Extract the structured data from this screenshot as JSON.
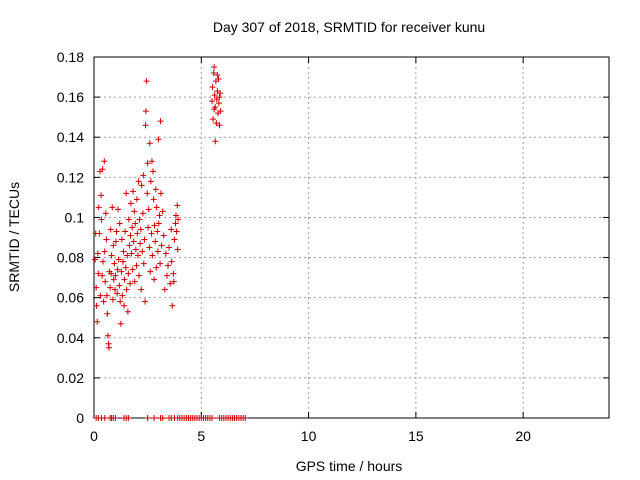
{
  "chart_data": {
    "type": "scatter",
    "title": "Day 307 of 2018, SRMTID for receiver kunu",
    "xlabel": "GPS time / hours",
    "ylabel": "SRMTID / TECUs",
    "xlim": [
      0,
      24
    ],
    "ylim": [
      0,
      0.18
    ],
    "grid": true,
    "x_ticks": [
      0,
      5,
      10,
      15,
      20
    ],
    "x_tick_labels": [
      "0",
      "5",
      "10",
      "15",
      "20"
    ],
    "y_ticks": [
      0,
      0.02,
      0.04,
      0.06,
      0.08,
      0.1,
      0.12,
      0.14,
      0.16,
      0.18
    ],
    "y_tick_labels": [
      "0",
      "0.02",
      "0.04",
      "0.06",
      "0.08",
      "0.1",
      "0.12",
      "0.14",
      "0.16",
      "0.18"
    ],
    "marker": "plus",
    "color": "#cc0000",
    "series": [
      {
        "name": "SRMTID",
        "points": [
          [
            0.05,
            0.079
          ],
          [
            0.08,
            0.092
          ],
          [
            0.1,
            0.065
          ],
          [
            0.12,
            0.056
          ],
          [
            0.15,
            0.048
          ],
          [
            0.18,
            0.082
          ],
          [
            0.2,
            0.072
          ],
          [
            0.22,
            0.105
          ],
          [
            0.25,
            0.092
          ],
          [
            0.28,
            0.123
          ],
          [
            0.3,
            0.061
          ],
          [
            0.33,
            0.111
          ],
          [
            0.35,
            0.099
          ],
          [
            0.38,
            0.071
          ],
          [
            0.4,
            0.124
          ],
          [
            0.42,
            0.078
          ],
          [
            0.45,
            0.058
          ],
          [
            0.48,
            0.128
          ],
          [
            0.5,
            0.083
          ],
          [
            0.52,
            0.068
          ],
          [
            0.55,
            0.102
          ],
          [
            0.58,
            0.089
          ],
          [
            0.6,
            0.061
          ],
          [
            0.62,
            0.052
          ],
          [
            0.65,
            0.041
          ],
          [
            0.68,
            0.037
          ],
          [
            0.7,
            0.035
          ],
          [
            0.72,
            0.073
          ],
          [
            0.75,
            0.065
          ],
          [
            0.78,
            0.094
          ],
          [
            0.8,
            0.072
          ],
          [
            0.82,
            0.081
          ],
          [
            0.85,
            0.105
          ],
          [
            0.88,
            0.059
          ],
          [
            0.9,
            0.086
          ],
          [
            0.92,
            0.069
          ],
          [
            0.95,
            0.077
          ],
          [
            0.98,
            0.064
          ],
          [
            1.0,
            0.071
          ],
          [
            1.02,
            0.088
          ],
          [
            1.05,
            0.093
          ],
          [
            1.08,
            0.062
          ],
          [
            1.1,
            0.074
          ],
          [
            1.12,
            0.104
          ],
          [
            1.15,
            0.079
          ],
          [
            1.18,
            0.066
          ],
          [
            1.2,
            0.097
          ],
          [
            1.22,
            0.058
          ],
          [
            1.25,
            0.047
          ],
          [
            1.28,
            0.073
          ],
          [
            1.3,
            0.089
          ],
          [
            1.32,
            0.061
          ],
          [
            1.35,
            0.078
          ],
          [
            1.38,
            0.083
          ],
          [
            1.4,
            0.056
          ],
          [
            1.42,
            0.069
          ],
          [
            1.45,
            0.093
          ],
          [
            1.48,
            0.075
          ],
          [
            1.5,
            0.112
          ],
          [
            1.52,
            0.064
          ],
          [
            1.55,
            0.081
          ],
          [
            1.58,
            0.053
          ],
          [
            1.6,
            0.072
          ],
          [
            1.62,
            0.099
          ],
          [
            1.65,
            0.086
          ],
          [
            1.68,
            0.067
          ],
          [
            1.7,
            0.091
          ],
          [
            1.72,
            0.107
          ],
          [
            1.75,
            0.082
          ],
          [
            1.78,
            0.095
          ],
          [
            1.8,
            0.074
          ],
          [
            1.82,
            0.113
          ],
          [
            1.85,
            0.088
          ],
          [
            1.88,
            0.103
          ],
          [
            1.9,
            0.068
          ],
          [
            1.92,
            0.097
          ],
          [
            1.95,
            0.084
          ],
          [
            1.98,
            0.076
          ],
          [
            2.0,
            0.109
          ],
          [
            2.02,
            0.092
          ],
          [
            2.05,
            0.081
          ],
          [
            2.08,
            0.118
          ],
          [
            2.1,
            0.071
          ],
          [
            2.12,
            0.099
          ],
          [
            2.15,
            0.087
          ],
          [
            2.18,
            0.094
          ],
          [
            2.2,
            0.064
          ],
          [
            2.22,
            0.116
          ],
          [
            2.25,
            0.083
          ],
          [
            2.28,
            0.102
          ],
          [
            2.3,
            0.121
          ],
          [
            2.32,
            0.077
          ],
          [
            2.35,
            0.089
          ],
          [
            2.38,
            0.058
          ],
          [
            2.4,
            0.146
          ],
          [
            2.42,
            0.153
          ],
          [
            2.45,
            0.168
          ],
          [
            2.48,
            0.112
          ],
          [
            2.5,
            0.127
          ],
          [
            2.52,
            0.095
          ],
          [
            2.55,
            0.104
          ],
          [
            2.58,
            0.085
          ],
          [
            2.6,
            0.137
          ],
          [
            2.62,
            0.073
          ],
          [
            2.65,
            0.118
          ],
          [
            2.68,
            0.092
          ],
          [
            2.7,
            0.128
          ],
          [
            2.72,
            0.081
          ],
          [
            2.75,
            0.123
          ],
          [
            2.78,
            0.109
          ],
          [
            2.8,
            0.069
          ],
          [
            2.82,
            0.096
          ],
          [
            2.85,
            0.088
          ],
          [
            2.88,
            0.114
          ],
          [
            2.9,
            0.075
          ],
          [
            2.92,
            0.105
          ],
          [
            2.95,
            0.093
          ],
          [
            2.98,
            0.083
          ],
          [
            3.0,
            0.139
          ],
          [
            3.02,
            0.097
          ],
          [
            3.05,
            0.101
          ],
          [
            3.08,
            0.077
          ],
          [
            3.1,
            0.148
          ],
          [
            3.12,
            0.112
          ],
          [
            3.15,
            0.086
          ],
          [
            3.2,
            0.103
          ],
          [
            3.25,
            0.091
          ],
          [
            3.3,
            0.064
          ],
          [
            3.35,
            0.082
          ],
          [
            3.4,
            0.071
          ],
          [
            3.45,
            0.076
          ],
          [
            3.5,
            0.085
          ],
          [
            3.55,
            0.067
          ],
          [
            3.6,
            0.094
          ],
          [
            3.62,
            0.078
          ],
          [
            3.65,
            0.056
          ],
          [
            3.7,
            0.072
          ],
          [
            3.72,
            0.068
          ],
          [
            3.75,
            0.089
          ],
          [
            3.8,
            0.097
          ],
          [
            3.82,
            0.101
          ],
          [
            3.85,
            0.093
          ],
          [
            3.88,
            0.106
          ],
          [
            3.9,
            0.084
          ],
          [
            3.92,
            0.099
          ],
          [
            5.5,
            0.158
          ],
          [
            5.52,
            0.165
          ],
          [
            5.55,
            0.149
          ],
          [
            5.58,
            0.172
          ],
          [
            5.6,
            0.154
          ],
          [
            5.62,
            0.161
          ],
          [
            5.65,
            0.138
          ],
          [
            5.68,
            0.168
          ],
          [
            5.7,
            0.147
          ],
          [
            5.72,
            0.159
          ],
          [
            5.75,
            0.163
          ],
          [
            5.78,
            0.152
          ],
          [
            5.8,
            0.169
          ],
          [
            5.82,
            0.157
          ],
          [
            5.85,
            0.146
          ],
          [
            5.88,
            0.162
          ],
          [
            5.9,
            0.153
          ],
          [
            5.6,
            0.175
          ],
          [
            5.65,
            0.155
          ],
          [
            5.75,
            0.171
          ],
          [
            5.85,
            0.16
          ],
          [
            0.1,
            0
          ],
          [
            0.2,
            0
          ],
          [
            0.35,
            0
          ],
          [
            0.5,
            0
          ],
          [
            0.75,
            0
          ],
          [
            0.82,
            0
          ],
          [
            0.9,
            0
          ],
          [
            1.0,
            0
          ],
          [
            1.4,
            0
          ],
          [
            1.5,
            0
          ],
          [
            1.6,
            0
          ],
          [
            2.5,
            0
          ],
          [
            2.8,
            0
          ],
          [
            3.1,
            0
          ],
          [
            3.2,
            0
          ],
          [
            3.5,
            0
          ],
          [
            3.6,
            0
          ],
          [
            3.75,
            0
          ],
          [
            3.9,
            0
          ],
          [
            4.0,
            0
          ],
          [
            4.1,
            0
          ],
          [
            4.2,
            0
          ],
          [
            4.3,
            0
          ],
          [
            4.4,
            0
          ],
          [
            4.5,
            0
          ],
          [
            4.6,
            0
          ],
          [
            4.7,
            0
          ],
          [
            4.8,
            0
          ],
          [
            4.9,
            0
          ],
          [
            5.0,
            0
          ],
          [
            5.1,
            0
          ],
          [
            5.2,
            0
          ],
          [
            5.3,
            0
          ],
          [
            5.4,
            0
          ],
          [
            5.5,
            0
          ],
          [
            5.85,
            0
          ],
          [
            5.95,
            0
          ],
          [
            6.05,
            0
          ],
          [
            6.15,
            0
          ],
          [
            6.25,
            0
          ],
          [
            6.35,
            0
          ],
          [
            6.45,
            0
          ],
          [
            6.55,
            0
          ],
          [
            6.65,
            0
          ],
          [
            6.75,
            0
          ],
          [
            6.85,
            0
          ],
          [
            6.95,
            0
          ],
          [
            7.05,
            0
          ]
        ]
      }
    ]
  }
}
